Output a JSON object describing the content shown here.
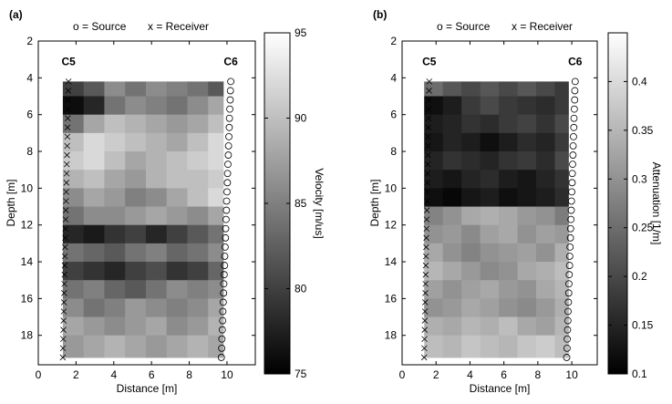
{
  "chart_data": [
    {
      "type": "heatmap",
      "panel_label": "(a)",
      "xlabel": "Distance [m]",
      "ylabel": "Depth [m]",
      "xlim": [
        0,
        11.5
      ],
      "ylim": [
        2,
        19.6
      ],
      "y_reversed": true,
      "xticks": [
        0,
        2,
        4,
        6,
        8,
        10
      ],
      "yticks": [
        2,
        4,
        6,
        8,
        10,
        12,
        14,
        16,
        18
      ],
      "colormap": "gray",
      "colorbar_label": "Velocity [m/us]",
      "clim": [
        75,
        95
      ],
      "cticks": [
        75,
        80,
        85,
        90,
        95
      ],
      "x_edges": [
        1.3,
        2.4,
        3.5,
        4.6,
        5.7,
        6.8,
        7.9,
        9,
        9.8
      ],
      "y_edges": [
        4.2,
        5,
        6,
        7,
        8,
        9,
        10,
        11,
        12,
        13,
        14,
        15,
        16,
        17,
        18,
        19.2
      ],
      "values": [
        [
          80,
          82,
          86,
          84,
          86,
          85,
          84,
          82
        ],
        [
          76,
          78,
          84,
          86,
          85,
          84,
          86,
          88
        ],
        [
          84,
          88,
          90,
          89,
          88,
          87,
          88,
          90
        ],
        [
          90,
          92,
          91,
          90,
          89,
          88,
          90,
          92
        ],
        [
          91,
          92,
          90,
          88,
          89,
          90,
          91,
          92
        ],
        [
          89,
          90,
          88,
          87,
          89,
          90,
          90,
          91
        ],
        [
          86,
          88,
          87,
          85,
          86,
          88,
          90,
          92
        ],
        [
          84,
          86,
          86,
          87,
          88,
          87,
          86,
          88
        ],
        [
          78,
          77,
          79,
          80,
          78,
          80,
          82,
          84
        ],
        [
          84,
          83,
          82,
          84,
          85,
          83,
          84,
          86
        ],
        [
          80,
          79,
          78,
          80,
          81,
          79,
          80,
          83
        ],
        [
          84,
          85,
          83,
          82,
          84,
          86,
          85,
          86
        ],
        [
          86,
          84,
          85,
          87,
          86,
          85,
          86,
          88
        ],
        [
          88,
          87,
          86,
          87,
          88,
          86,
          87,
          89
        ],
        [
          87,
          88,
          89,
          88,
          87,
          88,
          89,
          88
        ]
      ],
      "annotations": [
        "C5",
        "C6"
      ],
      "series": [
        {
          "name": "o = Source",
          "marker": "o",
          "color": "#000",
          "x": [
            10.2,
            10.18,
            10.17,
            10.15,
            10.13,
            10.12,
            10.1,
            10.08,
            10.07,
            10.05,
            10.03,
            10.02,
            10,
            9.98,
            9.97,
            9.95,
            9.93,
            9.92,
            9.9,
            9.88,
            9.87,
            9.85,
            9.83,
            9.82,
            9.8,
            9.78,
            9.77,
            9.75,
            9.73,
            9.72,
            9.7
          ],
          "y": [
            4.2,
            4.7,
            5.2,
            5.7,
            6.2,
            6.7,
            7.2,
            7.7,
            8.2,
            8.7,
            9.2,
            9.7,
            10.2,
            10.7,
            11.2,
            11.7,
            12.2,
            12.7,
            13.2,
            13.7,
            14.2,
            14.7,
            15.2,
            15.7,
            16.2,
            16.7,
            17.2,
            17.7,
            18.2,
            18.7,
            19.2
          ]
        },
        {
          "name": "x = Receiver",
          "marker": "x",
          "color": "#000",
          "x": [
            1.6,
            1.59,
            1.58,
            1.57,
            1.56,
            1.55,
            1.54,
            1.53,
            1.52,
            1.51,
            1.5,
            1.49,
            1.48,
            1.47,
            1.46,
            1.45,
            1.44,
            1.43,
            1.42,
            1.41,
            1.4,
            1.39,
            1.38,
            1.37,
            1.36,
            1.35,
            1.34,
            1.33,
            1.32,
            1.31,
            1.3
          ],
          "y": [
            4.2,
            4.7,
            5.2,
            5.7,
            6.2,
            6.7,
            7.2,
            7.7,
            8.2,
            8.7,
            9.2,
            9.7,
            10.2,
            10.7,
            11.2,
            11.7,
            12.2,
            12.7,
            13.2,
            13.7,
            14.2,
            14.7,
            15.2,
            15.7,
            16.2,
            16.7,
            17.2,
            17.7,
            18.2,
            18.7,
            19.2
          ]
        }
      ]
    },
    {
      "type": "heatmap",
      "panel_label": "(b)",
      "xlabel": "Distance [m]",
      "ylabel": "Depth [m]",
      "xlim": [
        0,
        11.5
      ],
      "ylim": [
        2,
        19.6
      ],
      "y_reversed": true,
      "xticks": [
        0,
        2,
        4,
        6,
        8,
        10
      ],
      "yticks": [
        2,
        4,
        6,
        8,
        10,
        12,
        14,
        16,
        18
      ],
      "colormap": "gray",
      "colorbar_label": "Attenuation [1/m]",
      "clim": [
        0.1,
        0.45
      ],
      "cticks": [
        0.1,
        0.15,
        0.2,
        0.25,
        0.3,
        0.35,
        0.4
      ],
      "x_edges": [
        1.3,
        2.4,
        3.5,
        4.6,
        5.7,
        6.8,
        7.9,
        9,
        9.8
      ],
      "y_edges": [
        4.2,
        5,
        6,
        7,
        8,
        9,
        10,
        11,
        12,
        13,
        14,
        15,
        16,
        17,
        18,
        19.2
      ],
      "values": [
        [
          0.25,
          0.22,
          0.2,
          0.22,
          0.2,
          0.22,
          0.2,
          0.18
        ],
        [
          0.12,
          0.14,
          0.18,
          0.2,
          0.18,
          0.17,
          0.16,
          0.18
        ],
        [
          0.14,
          0.15,
          0.17,
          0.16,
          0.18,
          0.19,
          0.17,
          0.2
        ],
        [
          0.13,
          0.15,
          0.14,
          0.12,
          0.14,
          0.16,
          0.15,
          0.18
        ],
        [
          0.15,
          0.17,
          0.16,
          0.15,
          0.17,
          0.18,
          0.16,
          0.2
        ],
        [
          0.14,
          0.13,
          0.15,
          0.16,
          0.14,
          0.13,
          0.15,
          0.17
        ],
        [
          0.12,
          0.11,
          0.13,
          0.14,
          0.12,
          0.13,
          0.14,
          0.16
        ],
        [
          0.28,
          0.3,
          0.33,
          0.34,
          0.33,
          0.31,
          0.3,
          0.27
        ],
        [
          0.3,
          0.31,
          0.29,
          0.32,
          0.33,
          0.3,
          0.32,
          0.31
        ],
        [
          0.33,
          0.3,
          0.28,
          0.3,
          0.31,
          0.32,
          0.3,
          0.34
        ],
        [
          0.35,
          0.33,
          0.31,
          0.29,
          0.3,
          0.33,
          0.34,
          0.36
        ],
        [
          0.32,
          0.3,
          0.32,
          0.33,
          0.31,
          0.3,
          0.33,
          0.35
        ],
        [
          0.3,
          0.31,
          0.33,
          0.32,
          0.3,
          0.29,
          0.31,
          0.34
        ],
        [
          0.34,
          0.33,
          0.35,
          0.34,
          0.36,
          0.33,
          0.32,
          0.35
        ],
        [
          0.36,
          0.35,
          0.37,
          0.36,
          0.35,
          0.37,
          0.38,
          0.36
        ]
      ],
      "annotations": [
        "C5",
        "C6"
      ],
      "series": [
        {
          "name": "o = Source",
          "marker": "o",
          "color": "#000",
          "x": [
            10.2,
            10.18,
            10.17,
            10.15,
            10.13,
            10.12,
            10.1,
            10.08,
            10.07,
            10.05,
            10.03,
            10.02,
            10,
            9.98,
            9.97,
            9.95,
            9.93,
            9.92,
            9.9,
            9.88,
            9.87,
            9.85,
            9.83,
            9.82,
            9.8,
            9.78,
            9.77,
            9.75,
            9.73,
            9.72,
            9.7
          ],
          "y": [
            4.2,
            4.7,
            5.2,
            5.7,
            6.2,
            6.7,
            7.2,
            7.7,
            8.2,
            8.7,
            9.2,
            9.7,
            10.2,
            10.7,
            11.2,
            11.7,
            12.2,
            12.7,
            13.2,
            13.7,
            14.2,
            14.7,
            15.2,
            15.7,
            16.2,
            16.7,
            17.2,
            17.7,
            18.2,
            18.7,
            19.2
          ]
        },
        {
          "name": "x = Receiver",
          "marker": "x",
          "color": "#000",
          "x": [
            1.6,
            1.59,
            1.58,
            1.57,
            1.56,
            1.55,
            1.54,
            1.53,
            1.52,
            1.51,
            1.5,
            1.49,
            1.48,
            1.47,
            1.46,
            1.45,
            1.44,
            1.43,
            1.42,
            1.41,
            1.4,
            1.39,
            1.38,
            1.37,
            1.36,
            1.35,
            1.34,
            1.33,
            1.32,
            1.31,
            1.3
          ],
          "y": [
            4.2,
            4.7,
            5.2,
            5.7,
            6.2,
            6.7,
            7.2,
            7.7,
            8.2,
            8.7,
            9.2,
            9.7,
            10.2,
            10.7,
            11.2,
            11.7,
            12.2,
            12.7,
            13.2,
            13.7,
            14.2,
            14.7,
            15.2,
            15.7,
            16.2,
            16.7,
            17.2,
            17.7,
            18.2,
            18.7,
            19.2
          ]
        }
      ]
    }
  ]
}
